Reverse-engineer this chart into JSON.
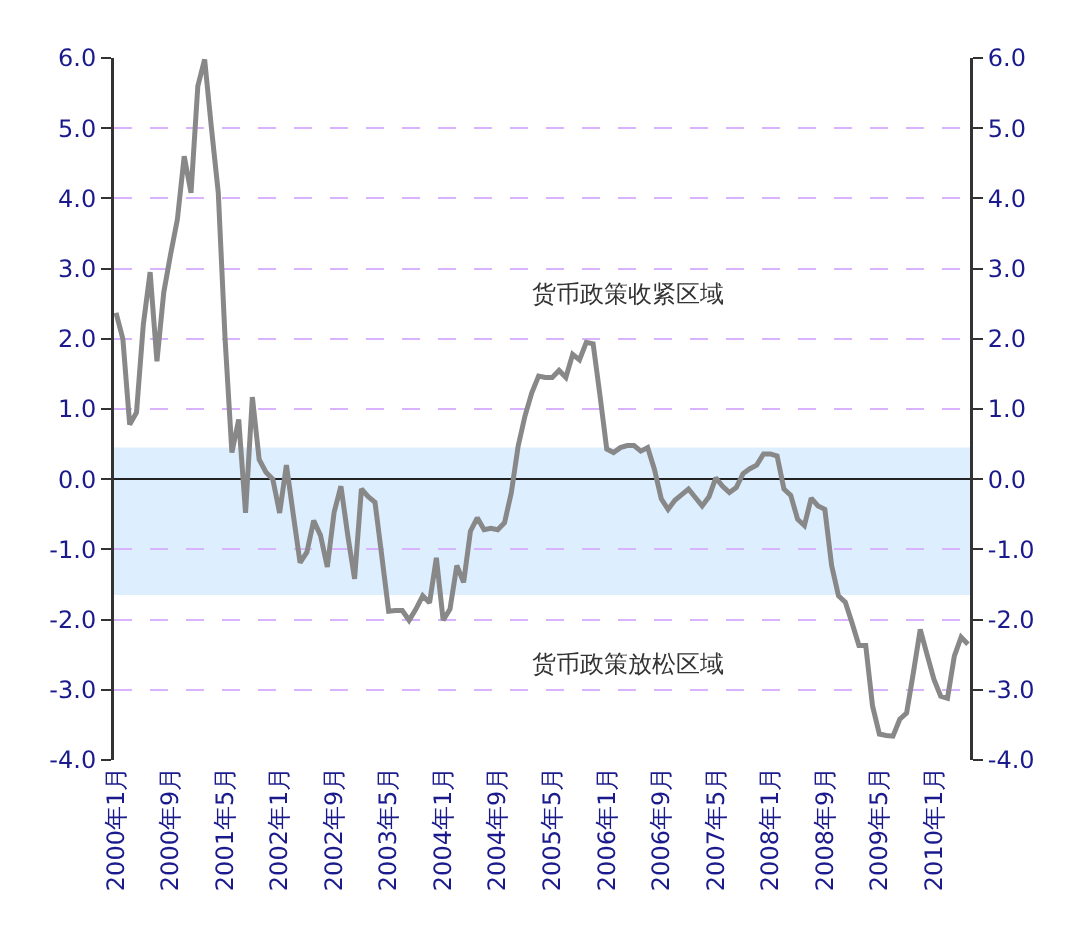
{
  "chart_data": {
    "type": "line",
    "categories": [
      "2000年1月",
      null,
      null,
      null,
      null,
      null,
      null,
      null,
      "2000年9月",
      null,
      null,
      null,
      null,
      null,
      null,
      null,
      "2001年5月",
      null,
      null,
      null,
      null,
      null,
      null,
      null,
      "2002年1月",
      null,
      null,
      null,
      null,
      null,
      null,
      null,
      "2002年9月",
      null,
      null,
      null,
      null,
      null,
      null,
      null,
      "2003年5月",
      null,
      null,
      null,
      null,
      null,
      null,
      null,
      "2004年1月",
      null,
      null,
      null,
      null,
      null,
      null,
      null,
      "2004年9月",
      null,
      null,
      null,
      null,
      null,
      null,
      null,
      "2005年5月",
      null,
      null,
      null,
      null,
      null,
      null,
      null,
      "2006年1月",
      null,
      null,
      null,
      null,
      null,
      null,
      null,
      "2006年9月",
      null,
      null,
      null,
      null,
      null,
      null,
      null,
      "2007年5月",
      null,
      null,
      null,
      null,
      null,
      null,
      null,
      "2008年1月",
      null,
      null,
      null,
      null,
      null,
      null,
      null,
      "2008年9月",
      null,
      null,
      null,
      null,
      null,
      null,
      null,
      "2009年5月",
      null,
      null,
      null,
      null,
      null,
      null,
      null,
      "2010年1月",
      null,
      null,
      null,
      null,
      null
    ],
    "series": [
      {
        "color": "#888888",
        "values": [
          2.37,
          2.0,
          0.78,
          0.95,
          2.2,
          2.95,
          1.68,
          2.66,
          3.2,
          3.7,
          4.6,
          4.08,
          5.6,
          5.98,
          5.0,
          4.08,
          2.0,
          0.38,
          0.85,
          -0.48,
          1.17,
          0.28,
          0.1,
          0.0,
          -0.48,
          0.2,
          -0.5,
          -1.19,
          -1.04,
          -0.59,
          -0.8,
          -1.25,
          -0.47,
          -0.1,
          -0.8,
          -1.42,
          -0.14,
          -0.25,
          -0.33,
          -1.1,
          -1.88,
          -1.87,
          -1.87,
          -2.01,
          -1.85,
          -1.66,
          -1.76,
          -1.12,
          -2.01,
          -1.85,
          -1.23,
          -1.47,
          -0.74,
          -0.55,
          -0.72,
          -0.7,
          -0.72,
          -0.62,
          -0.19,
          0.47,
          0.9,
          1.23,
          1.47,
          1.45,
          1.45,
          1.55,
          1.45,
          1.78,
          1.7,
          1.95,
          1.93,
          1.2,
          0.43,
          0.38,
          0.45,
          0.48,
          0.48,
          0.4,
          0.45,
          0.14,
          -0.28,
          -0.43,
          -0.3,
          -0.22,
          -0.14,
          -0.26,
          -0.38,
          -0.25,
          0.02,
          -0.1,
          -0.19,
          -0.12,
          0.08,
          0.15,
          0.2,
          0.36,
          0.36,
          0.33,
          -0.14,
          -0.23,
          -0.57,
          -0.66,
          -0.27,
          -0.38,
          -0.43,
          -1.23,
          -1.66,
          -1.75,
          -2.05,
          -2.37,
          -2.37,
          -3.23,
          -3.63,
          -3.65,
          -3.66,
          -3.42,
          -3.33,
          -2.75,
          -2.14,
          -2.5,
          -2.85,
          -3.09,
          -3.12,
          -2.52,
          -2.25,
          -2.35
        ]
      }
    ],
    "ylim": [
      -4,
      6
    ],
    "yticks": [
      {
        "value": -4,
        "label": "-4.0"
      },
      {
        "value": -3,
        "label": "-3.0"
      },
      {
        "value": -2,
        "label": "-2.0"
      },
      {
        "value": -1,
        "label": "-1.0"
      },
      {
        "value": 0,
        "label": "0.0"
      },
      {
        "value": 1,
        "label": "1.0"
      },
      {
        "value": 2,
        "label": "2.0"
      },
      {
        "value": 3,
        "label": "3.0"
      },
      {
        "value": 4,
        "label": "4.0"
      },
      {
        "value": 5,
        "label": "5.0"
      },
      {
        "value": 6,
        "label": "6.0"
      }
    ],
    "y2lim": [
      -4,
      6
    ],
    "y2ticks": [
      {
        "value": -4,
        "label": "-4.0"
      },
      {
        "value": -3,
        "label": "-3.0"
      },
      {
        "value": -2,
        "label": "-2.0"
      },
      {
        "value": -1,
        "label": "-1.0"
      },
      {
        "value": 0,
        "label": "0.0"
      },
      {
        "value": 1,
        "label": "1.0"
      },
      {
        "value": 2,
        "label": "2.0"
      },
      {
        "value": 3,
        "label": "3.0"
      },
      {
        "value": 4,
        "label": "4.0"
      },
      {
        "value": 5,
        "label": "5.0"
      },
      {
        "value": 6,
        "label": "6.0"
      }
    ],
    "bands": [
      {
        "axis": "y",
        "from": -1.65,
        "to": 0.45,
        "color": "#ddeeff"
      }
    ],
    "annotations": [
      "货币政策收紧区域",
      "货币政策放松区域"
    ],
    "grid": "y",
    "marker": "none",
    "line_style": "solid"
  }
}
